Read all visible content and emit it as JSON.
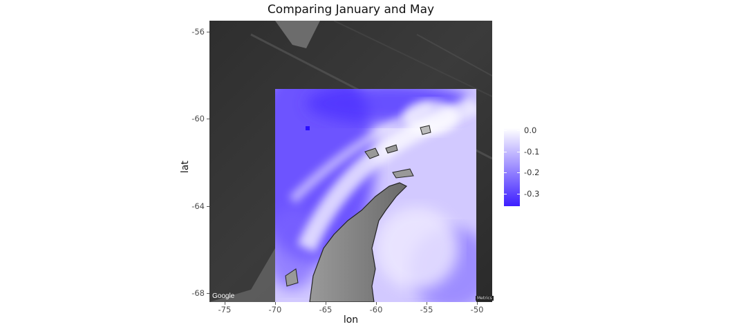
{
  "chart_data": {
    "type": "heatmap",
    "title": "Comparing January and May",
    "xlabel": "lon",
    "ylabel": "lat",
    "xlim": [
      -76.5,
      -48.5
    ],
    "ylim": [
      -68.4,
      -55.5
    ],
    "x_ticks": [
      "-75",
      "-70",
      "-65",
      "-60",
      "-55",
      "-50"
    ],
    "x_tick_values": [
      -75,
      -70,
      -65,
      -60,
      -55,
      -50
    ],
    "y_ticks": [
      "-56",
      "-60",
      "-64",
      "-68"
    ],
    "y_tick_values": [
      -56,
      -60,
      -64,
      -68
    ],
    "raster_extent": {
      "lon": [
        -70,
        -50
      ],
      "lat": [
        -68.4,
        -59.2
      ]
    },
    "legend": {
      "labels": [
        "0.0",
        "-0.1",
        "-0.2",
        "-0.3"
      ],
      "values": [
        0.0,
        -0.1,
        -0.2,
        -0.3
      ],
      "range": [
        -0.36,
        0.01
      ],
      "low_color": "#3d1eff",
      "high_color": "#ffffff",
      "position": "right"
    },
    "basemap_attribution": "Google",
    "basemap_footer": "Metrics"
  },
  "colors": {
    "basemap_dark": "#3a3a3a",
    "low": "#3d1eff",
    "high": "#ffffff"
  }
}
